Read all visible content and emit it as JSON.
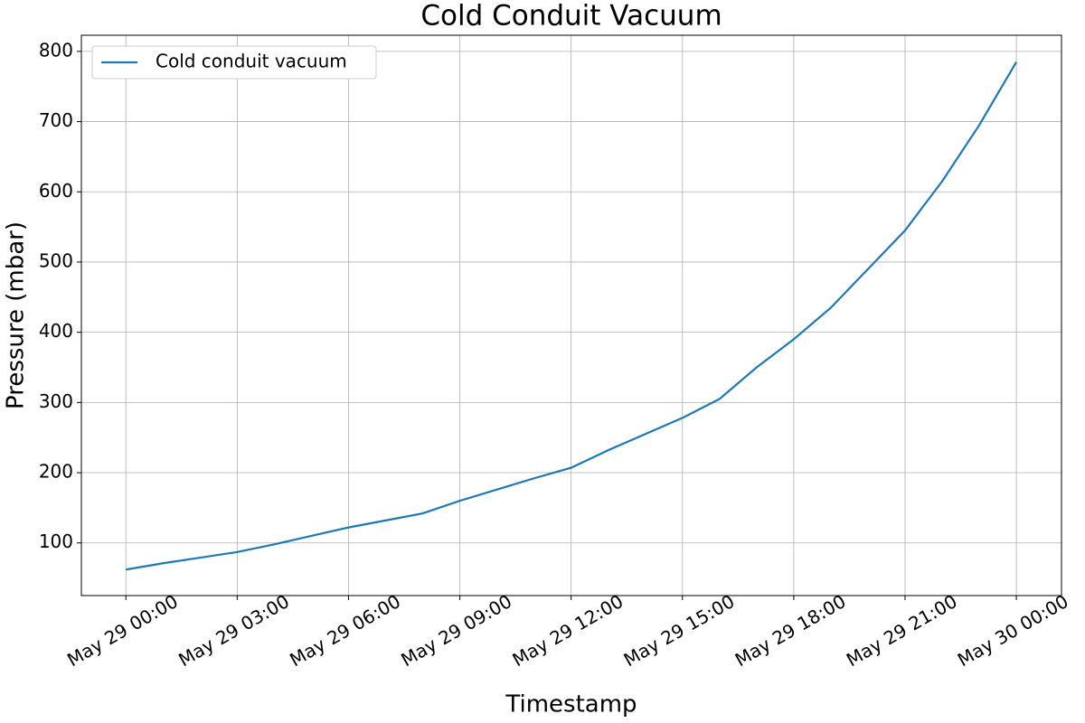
{
  "chart_data": {
    "type": "line",
    "title": "Cold Conduit Vacuum",
    "xlabel": "Timestamp",
    "ylabel": "Pressure (mbar)",
    "x": [
      "May 29 00:00",
      "May 29 01:00",
      "May 29 02:00",
      "May 29 03:00",
      "May 29 04:00",
      "May 29 05:00",
      "May 29 06:00",
      "May 29 07:00",
      "May 29 08:00",
      "May 29 09:00",
      "May 29 10:00",
      "May 29 11:00",
      "May 29 12:00",
      "May 29 13:00",
      "May 29 14:00",
      "May 29 15:00",
      "May 29 16:00",
      "May 29 17:00",
      "May 29 18:00",
      "May 29 19:00",
      "May 29 20:00",
      "May 29 21:00",
      "May 29 22:00",
      "May 29 23:00",
      "May 30 00:00"
    ],
    "series": [
      {
        "name": "Cold conduit vacuum",
        "color": "#1f77b4",
        "values": [
          62,
          71,
          79,
          87,
          98,
          110,
          122,
          132,
          142,
          160,
          176,
          192,
          207,
          232,
          255,
          278,
          305,
          350,
          390,
          435,
          490,
          545,
          615,
          695,
          785
        ]
      }
    ],
    "xlim": [
      "May 28 22:48",
      "May 30 01:13"
    ],
    "xticks": [
      "May 29 00:00",
      "May 29 03:00",
      "May 29 06:00",
      "May 29 09:00",
      "May 29 12:00",
      "May 29 15:00",
      "May 29 18:00",
      "May 29 21:00",
      "May 30 00:00"
    ],
    "ylim": [
      25,
      823
    ],
    "yticks": [
      100,
      200,
      300,
      400,
      500,
      600,
      700,
      800
    ],
    "grid": true,
    "legend": "upper left"
  }
}
